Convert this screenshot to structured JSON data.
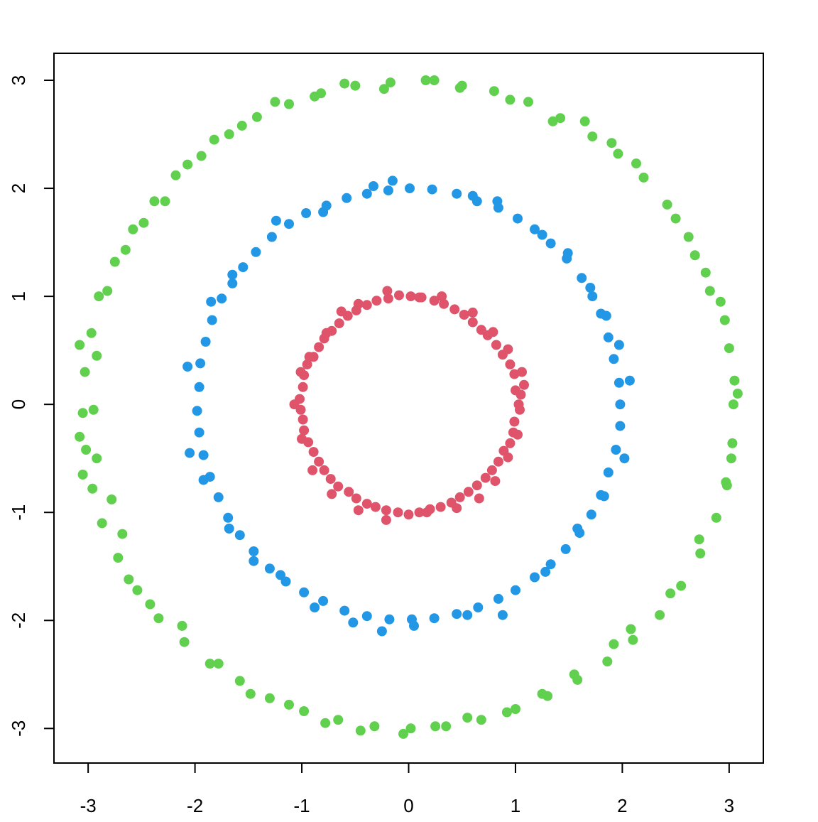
{
  "chart_data": {
    "type": "scatter",
    "title": "",
    "xlabel": "",
    "ylabel": "",
    "xlim": [
      -3.32,
      3.32
    ],
    "ylim": [
      -3.32,
      3.25
    ],
    "grid": false,
    "legend": "none",
    "x_ticks": [
      -3,
      -2,
      -1,
      0,
      1,
      2,
      3
    ],
    "y_ticks": [
      -3,
      -2,
      -1,
      0,
      1,
      2,
      3
    ],
    "x_tick_labels": [
      "-3",
      "-2",
      "-1",
      "0",
      "1",
      "2",
      "3"
    ],
    "y_tick_labels": [
      "-3",
      "-2",
      "-1",
      "0",
      "1",
      "2",
      "3"
    ],
    "series": [
      {
        "color": "#DF536B",
        "points": [
          [
            1.03,
            0.0
          ],
          [
            1.0,
            0.13
          ],
          [
            0.99,
            0.28
          ],
          [
            0.95,
            0.37
          ],
          [
            0.88,
            0.46
          ],
          [
            0.82,
            0.55
          ],
          [
            0.74,
            0.64
          ],
          [
            0.68,
            0.69
          ],
          [
            0.6,
            0.76
          ],
          [
            0.52,
            0.83
          ],
          [
            0.43,
            0.88
          ],
          [
            0.33,
            0.93
          ],
          [
            0.24,
            0.96
          ],
          [
            0.12,
            0.99
          ],
          [
            0.02,
            1.0
          ],
          [
            -0.09,
            1.01
          ],
          [
            -0.19,
            0.98
          ],
          [
            -0.3,
            0.96
          ],
          [
            -0.39,
            0.92
          ],
          [
            -0.49,
            0.87
          ],
          [
            -0.57,
            0.82
          ],
          [
            -0.65,
            0.75
          ],
          [
            -0.72,
            0.68
          ],
          [
            -0.79,
            0.61
          ],
          [
            -0.84,
            0.53
          ],
          [
            -0.89,
            0.44
          ],
          [
            -0.95,
            0.37
          ],
          [
            -0.98,
            0.27
          ],
          [
            -0.99,
            0.16
          ],
          [
            -1.02,
            0.05
          ],
          [
            -1.01,
            -0.05
          ],
          [
            -0.99,
            -0.14
          ],
          [
            -0.98,
            -0.24
          ],
          [
            -0.94,
            -0.35
          ],
          [
            -0.89,
            -0.44
          ],
          [
            -0.84,
            -0.53
          ],
          [
            -0.79,
            -0.61
          ],
          [
            -0.73,
            -0.69
          ],
          [
            -0.66,
            -0.76
          ],
          [
            -0.56,
            -0.81
          ],
          [
            -0.49,
            -0.87
          ],
          [
            -0.39,
            -0.92
          ],
          [
            -0.31,
            -0.95
          ],
          [
            -0.21,
            -0.98
          ],
          [
            -0.1,
            -1.0
          ],
          [
            0.0,
            -1.02
          ],
          [
            0.1,
            -1.0
          ],
          [
            0.2,
            -0.97
          ],
          [
            0.3,
            -0.95
          ],
          [
            0.4,
            -0.91
          ],
          [
            0.48,
            -0.86
          ],
          [
            0.56,
            -0.81
          ],
          [
            0.64,
            -0.75
          ],
          [
            0.72,
            -0.68
          ],
          [
            0.78,
            -0.61
          ],
          [
            0.84,
            -0.53
          ],
          [
            0.89,
            -0.43
          ],
          [
            0.95,
            -0.36
          ],
          [
            0.98,
            -0.26
          ],
          [
            0.99,
            -0.16
          ],
          [
            1.04,
            -0.05
          ],
          [
            1.05,
            0.09
          ],
          [
            1.08,
            0.18
          ],
          [
            1.06,
            0.3
          ],
          [
            0.93,
            0.51
          ],
          [
            0.79,
            0.67
          ],
          [
            0.6,
            0.85
          ],
          [
            0.31,
            1.0
          ],
          [
            0.1,
            0.99
          ],
          [
            -0.2,
            1.05
          ],
          [
            -0.47,
            0.93
          ],
          [
            -0.63,
            0.86
          ],
          [
            -0.77,
            0.66
          ],
          [
            -0.93,
            0.44
          ],
          [
            -1.01,
            0.3
          ],
          [
            -1.07,
            0.0
          ],
          [
            -1.0,
            -0.32
          ],
          [
            -0.9,
            -0.61
          ],
          [
            -0.72,
            -0.83
          ],
          [
            -0.47,
            -0.98
          ],
          [
            -0.21,
            -1.07
          ],
          [
            0.17,
            -1.0
          ],
          [
            0.45,
            -0.96
          ],
          [
            0.66,
            -0.87
          ],
          [
            0.81,
            -0.71
          ],
          [
            0.93,
            -0.49
          ],
          [
            1.02,
            -0.28
          ]
        ]
      },
      {
        "color": "#2297E6",
        "points": [
          [
            1.98,
            0.0
          ],
          [
            1.97,
            0.2
          ],
          [
            1.92,
            0.42
          ],
          [
            1.87,
            0.62
          ],
          [
            1.8,
            0.84
          ],
          [
            1.72,
            1.0
          ],
          [
            1.62,
            1.17
          ],
          [
            1.48,
            1.35
          ],
          [
            1.33,
            1.49
          ],
          [
            1.18,
            1.62
          ],
          [
            1.02,
            1.72
          ],
          [
            0.84,
            1.82
          ],
          [
            0.64,
            1.88
          ],
          [
            0.45,
            1.95
          ],
          [
            0.22,
            1.99
          ],
          [
            0.01,
            2.0
          ],
          [
            -0.19,
            1.98
          ],
          [
            -0.39,
            1.95
          ],
          [
            -0.58,
            1.91
          ],
          [
            -0.77,
            1.84
          ],
          [
            -0.96,
            1.77
          ],
          [
            -1.12,
            1.67
          ],
          [
            -1.28,
            1.55
          ],
          [
            -1.43,
            1.41
          ],
          [
            -1.55,
            1.27
          ],
          [
            -1.65,
            1.12
          ],
          [
            -1.75,
            0.98
          ],
          [
            -1.84,
            0.78
          ],
          [
            -1.9,
            0.58
          ],
          [
            -1.95,
            0.38
          ],
          [
            -1.96,
            0.16
          ],
          [
            -1.98,
            -0.06
          ],
          [
            -1.96,
            -0.26
          ],
          [
            -1.92,
            -0.47
          ],
          [
            -1.86,
            -0.67
          ],
          [
            -1.78,
            -0.86
          ],
          [
            -1.69,
            -1.05
          ],
          [
            -1.58,
            -1.21
          ],
          [
            -1.45,
            -1.36
          ],
          [
            -1.3,
            -1.52
          ],
          [
            -1.15,
            -1.64
          ],
          [
            -0.98,
            -1.74
          ],
          [
            -0.8,
            -1.82
          ],
          [
            -0.6,
            -1.91
          ],
          [
            -0.39,
            -1.96
          ],
          [
            -0.18,
            -1.99
          ],
          [
            0.03,
            -1.99
          ],
          [
            0.24,
            -1.98
          ],
          [
            0.45,
            -1.94
          ],
          [
            0.65,
            -1.88
          ],
          [
            0.84,
            -1.8
          ],
          [
            1.0,
            -1.72
          ],
          [
            1.18,
            -1.6
          ],
          [
            1.33,
            -1.48
          ],
          [
            1.47,
            -1.34
          ],
          [
            1.6,
            -1.19
          ],
          [
            1.71,
            -1.02
          ],
          [
            1.8,
            -0.84
          ],
          [
            1.87,
            -0.63
          ],
          [
            1.94,
            -0.42
          ],
          [
            1.98,
            -0.2
          ],
          [
            2.07,
            0.22
          ],
          [
            1.97,
            0.55
          ],
          [
            1.85,
            0.82
          ],
          [
            1.7,
            1.08
          ],
          [
            1.49,
            1.4
          ],
          [
            1.25,
            1.57
          ],
          [
            0.83,
            1.88
          ],
          [
            0.6,
            1.93
          ],
          [
            -0.15,
            2.07
          ],
          [
            -0.33,
            2.02
          ],
          [
            -0.8,
            1.78
          ],
          [
            -1.24,
            1.7
          ],
          [
            -1.65,
            1.2
          ],
          [
            -1.85,
            0.95
          ],
          [
            -2.07,
            0.35
          ],
          [
            -2.05,
            -0.45
          ],
          [
            -1.92,
            -0.7
          ],
          [
            -1.68,
            -1.15
          ],
          [
            -1.45,
            -1.45
          ],
          [
            -1.2,
            -1.58
          ],
          [
            -0.88,
            -1.88
          ],
          [
            -0.52,
            -2.02
          ],
          [
            -0.25,
            -2.1
          ],
          [
            0.05,
            -2.05
          ],
          [
            0.55,
            -1.95
          ],
          [
            0.88,
            -1.95
          ],
          [
            1.28,
            -1.55
          ],
          [
            1.58,
            -1.15
          ],
          [
            1.83,
            -0.85
          ],
          [
            2.02,
            -0.5
          ]
        ]
      },
      {
        "color": "#61D04F",
        "points": [
          [
            3.04,
            0.0
          ],
          [
            3.0,
            0.52
          ],
          [
            2.92,
            0.95
          ],
          [
            2.78,
            1.22
          ],
          [
            2.62,
            1.55
          ],
          [
            2.42,
            1.85
          ],
          [
            2.2,
            2.1
          ],
          [
            1.96,
            2.32
          ],
          [
            1.72,
            2.48
          ],
          [
            1.42,
            2.65
          ],
          [
            1.12,
            2.8
          ],
          [
            0.8,
            2.9
          ],
          [
            0.5,
            2.95
          ],
          [
            0.16,
            3.0
          ],
          [
            -0.17,
            2.98
          ],
          [
            -0.5,
            2.95
          ],
          [
            -0.82,
            2.88
          ],
          [
            -1.12,
            2.78
          ],
          [
            -1.42,
            2.66
          ],
          [
            -1.68,
            2.5
          ],
          [
            -1.94,
            2.3
          ],
          [
            -2.18,
            2.12
          ],
          [
            -2.38,
            1.88
          ],
          [
            -2.58,
            1.62
          ],
          [
            -2.75,
            1.32
          ],
          [
            -2.9,
            1.0
          ],
          [
            -2.97,
            0.66
          ],
          [
            -3.03,
            0.3
          ],
          [
            -3.05,
            -0.08
          ],
          [
            -3.02,
            -0.42
          ],
          [
            -2.96,
            -0.78
          ],
          [
            -2.87,
            -1.1
          ],
          [
            -2.72,
            -1.42
          ],
          [
            -2.54,
            -1.72
          ],
          [
            -2.34,
            -1.98
          ],
          [
            -2.1,
            -2.2
          ],
          [
            -1.86,
            -2.4
          ],
          [
            -1.58,
            -2.56
          ],
          [
            -1.3,
            -2.72
          ],
          [
            -0.98,
            -2.84
          ],
          [
            -0.66,
            -2.92
          ],
          [
            -0.32,
            -2.98
          ],
          [
            0.02,
            -3.0
          ],
          [
            0.35,
            -2.98
          ],
          [
            0.68,
            -2.92
          ],
          [
            1.0,
            -2.82
          ],
          [
            1.3,
            -2.7
          ],
          [
            1.58,
            -2.55
          ],
          [
            1.86,
            -2.38
          ],
          [
            2.1,
            -2.18
          ],
          [
            2.35,
            -1.95
          ],
          [
            2.55,
            -1.68
          ],
          [
            2.73,
            -1.38
          ],
          [
            2.88,
            -1.05
          ],
          [
            2.97,
            -0.72
          ],
          [
            3.03,
            -0.36
          ],
          [
            3.08,
            0.1
          ],
          [
            3.05,
            0.22
          ],
          [
            2.96,
            0.78
          ],
          [
            2.82,
            1.05
          ],
          [
            2.68,
            1.38
          ],
          [
            2.5,
            1.72
          ],
          [
            2.13,
            2.23
          ],
          [
            1.9,
            2.42
          ],
          [
            1.65,
            2.62
          ],
          [
            1.35,
            2.62
          ],
          [
            0.95,
            2.82
          ],
          [
            0.48,
            2.93
          ],
          [
            0.24,
            3.0
          ],
          [
            -0.23,
            2.92
          ],
          [
            -0.6,
            2.97
          ],
          [
            -0.88,
            2.85
          ],
          [
            -1.25,
            2.8
          ],
          [
            -1.56,
            2.58
          ],
          [
            -1.82,
            2.45
          ],
          [
            -2.07,
            2.22
          ],
          [
            -2.28,
            1.88
          ],
          [
            -2.48,
            1.68
          ],
          [
            -2.65,
            1.43
          ],
          [
            -2.82,
            1.05
          ],
          [
            -2.92,
            0.45
          ],
          [
            -3.08,
            0.55
          ],
          [
            -3.08,
            -0.3
          ],
          [
            -2.95,
            -0.05
          ],
          [
            -3.05,
            -0.65
          ],
          [
            -2.92,
            -0.5
          ],
          [
            -2.78,
            -0.88
          ],
          [
            -2.68,
            -1.2
          ],
          [
            -2.62,
            -1.62
          ],
          [
            -2.42,
            -1.85
          ],
          [
            -2.12,
            -2.05
          ],
          [
            -1.78,
            -2.4
          ],
          [
            -1.48,
            -2.68
          ],
          [
            -1.12,
            -2.78
          ],
          [
            -0.78,
            -2.95
          ],
          [
            -0.45,
            -3.02
          ],
          [
            -0.05,
            -3.05
          ],
          [
            0.25,
            -2.98
          ],
          [
            0.55,
            -2.9
          ],
          [
            0.92,
            -2.85
          ],
          [
            1.25,
            -2.68
          ],
          [
            1.55,
            -2.5
          ],
          [
            1.92,
            -2.22
          ],
          [
            2.08,
            -2.08
          ],
          [
            2.45,
            -1.75
          ],
          [
            2.72,
            -1.25
          ],
          [
            2.98,
            -0.75
          ],
          [
            3.02,
            -0.5
          ]
        ]
      }
    ]
  }
}
